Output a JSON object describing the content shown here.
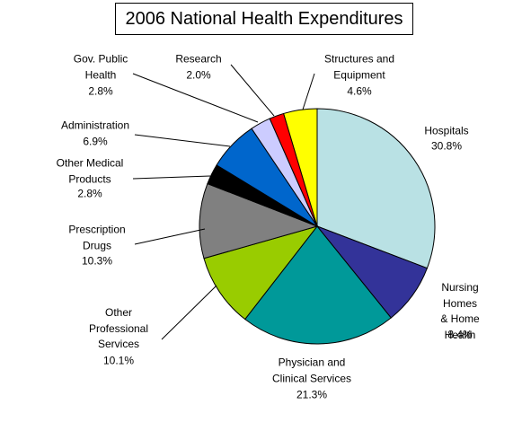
{
  "chart_data": {
    "type": "pie",
    "title": "2006 National Health Expenditures",
    "categories": [
      "Hospitals",
      "Nursing Homes\n& Home Health",
      "Physician and\nClinical Services",
      "Other\nProfessional\nServices",
      "Prescription\nDrugs",
      "Other Medical\nProducts",
      "Administration",
      "Gov. Public\nHealth",
      "Research",
      "Structures and\nEquipment"
    ],
    "values": [
      30.8,
      8.4,
      21.3,
      10.1,
      10.3,
      2.8,
      6.9,
      2.8,
      2.0,
      4.6
    ],
    "value_labels": [
      "30.8%",
      "8.4%",
      "21.3%",
      "10.1%",
      "10.3%",
      "2.8%",
      "6.9%",
      "2.8%",
      "2.0%",
      "4.6%"
    ],
    "colors": [
      "#b9e1e4",
      "#333399",
      "#009999",
      "#99cc00",
      "#808080",
      "#000000",
      "#0066cc",
      "#ccccff",
      "#ff0000",
      "#ffff00"
    ]
  }
}
